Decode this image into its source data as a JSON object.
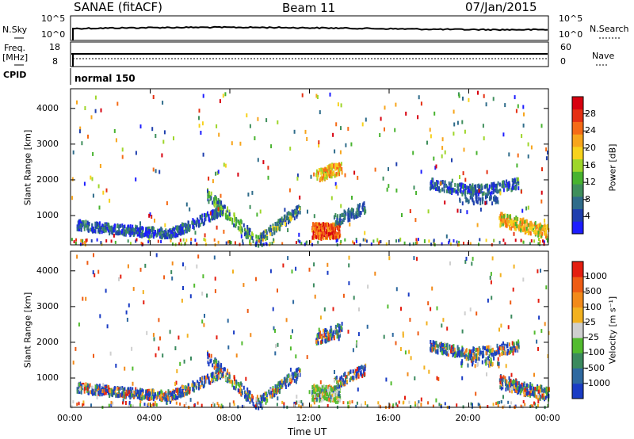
{
  "header": {
    "station": "SANAE (fitACF)",
    "beam": "Beam 11",
    "date": "07/Jan/2015"
  },
  "top_panels": {
    "nsky_label": "N.Sky",
    "nsky_ticks": [
      "10^5",
      "10^0"
    ],
    "nsearch_label": "N.Search",
    "nsearch_ticks": [
      "10^5",
      "10^0"
    ],
    "freq_label_1": "Freq.",
    "freq_label_2": "[MHz]",
    "freq_ticks": [
      "18",
      "8"
    ],
    "nave_label": "Nave",
    "nave_ticks": [
      "60",
      "0"
    ],
    "cpid_label": "CPID",
    "cpid_value": "normal 150"
  },
  "colors": {
    "power": [
      "#1d1dff",
      "#1f3fae",
      "#2f6c8a",
      "#3f8f5c",
      "#48b32f",
      "#9ed62a",
      "#f7d21c",
      "#f7a51c",
      "#f56b16",
      "#e53012",
      "#d7000f"
    ],
    "velocity": [
      "#1a3cc4",
      "#2e69a0",
      "#3b8a5e",
      "#52bb2f",
      "#cfcfcf",
      "#f2b120",
      "#f28a1a",
      "#ee5c14",
      "#e41e10"
    ]
  },
  "chart_data": [
    {
      "type": "heatmap",
      "name": "power",
      "ylabel": "Slant Range [km]",
      "x_ticks": [
        "00:00",
        "04:00",
        "08:00",
        "12:00",
        "16:00",
        "20:00",
        "00:00"
      ],
      "y_ticks": [
        "1000",
        "2000",
        "3000",
        "4000"
      ],
      "ylim": [
        180,
        4550
      ],
      "colorbar_label": "Power [dB]",
      "colorbar_ticks": [
        "4",
        "8",
        "12",
        "16",
        "20",
        "24",
        "28"
      ]
    },
    {
      "type": "heatmap",
      "name": "velocity",
      "ylabel": "Slant Range [km]",
      "xlabel": "Time UT",
      "x_ticks": [
        "00:00",
        "04:00",
        "08:00",
        "12:00",
        "16:00",
        "20:00",
        "00:00"
      ],
      "y_ticks": [
        "1000",
        "2000",
        "3000",
        "4000"
      ],
      "ylim": [
        180,
        4550
      ],
      "colorbar_label": "Velocity [m s⁻¹]",
      "colorbar_ticks": [
        "1000",
        "500",
        "100",
        "25",
        "-25",
        "-100",
        "-500",
        "-1000"
      ]
    }
  ]
}
